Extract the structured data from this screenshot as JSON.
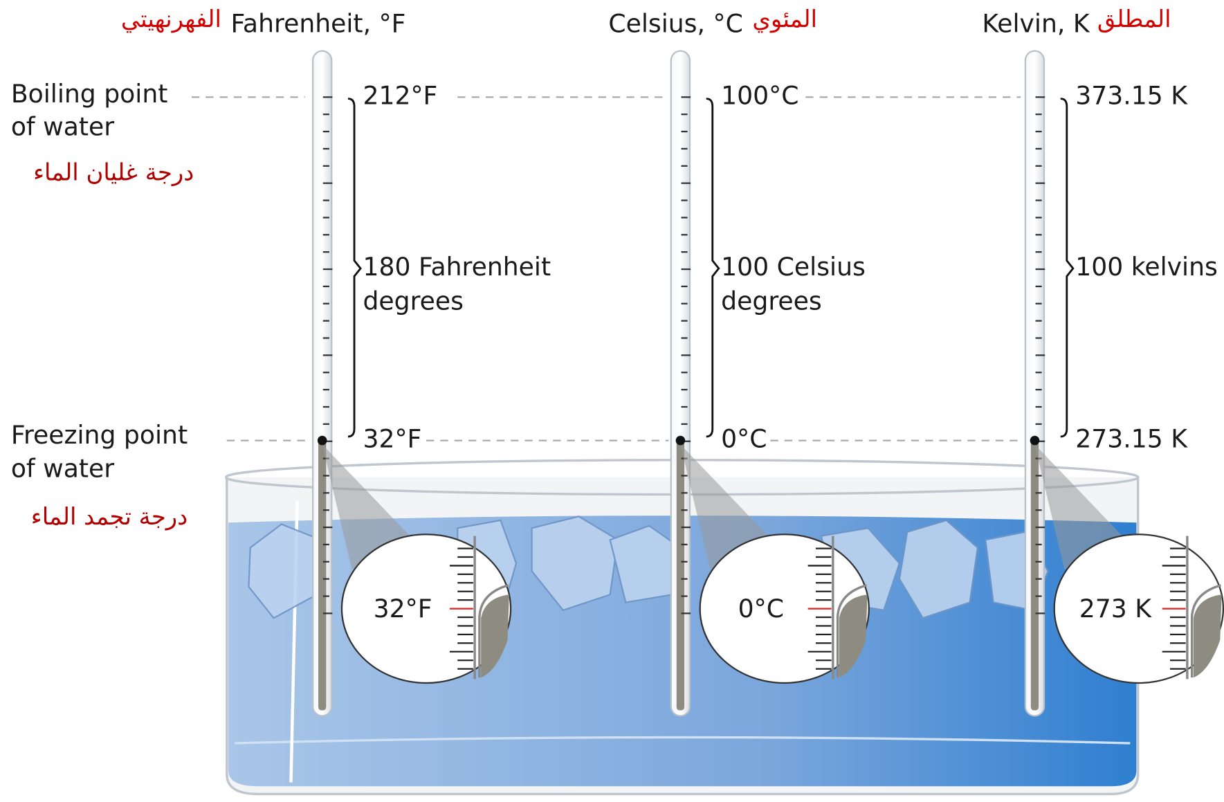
{
  "left_labels": {
    "boiling": [
      "Boiling point",
      "of water"
    ],
    "boiling_ar": "درجة غليان الماء",
    "freezing": [
      "Freezing point",
      "of water"
    ],
    "freezing_ar": "درجة تجمد الماء"
  },
  "scales": [
    {
      "name": "Fahrenheit, °F",
      "name_ar": "الفهرنهيتي",
      "boiling": "212°F",
      "freezing": "32°F",
      "interval": [
        "180 Fahrenheit",
        "degrees"
      ],
      "reading": "32°F"
    },
    {
      "name": "Celsius, °C",
      "name_ar": "المئوي",
      "boiling": "100°C",
      "freezing": "0°C",
      "interval": [
        "100 Celsius",
        "degrees"
      ],
      "reading": "0°C"
    },
    {
      "name": "Kelvin, K",
      "name_ar": "المطلق",
      "boiling": "373.15 K",
      "freezing": "273.15 K",
      "interval": [
        "100 kelvins"
      ],
      "reading": "273 K"
    }
  ]
}
